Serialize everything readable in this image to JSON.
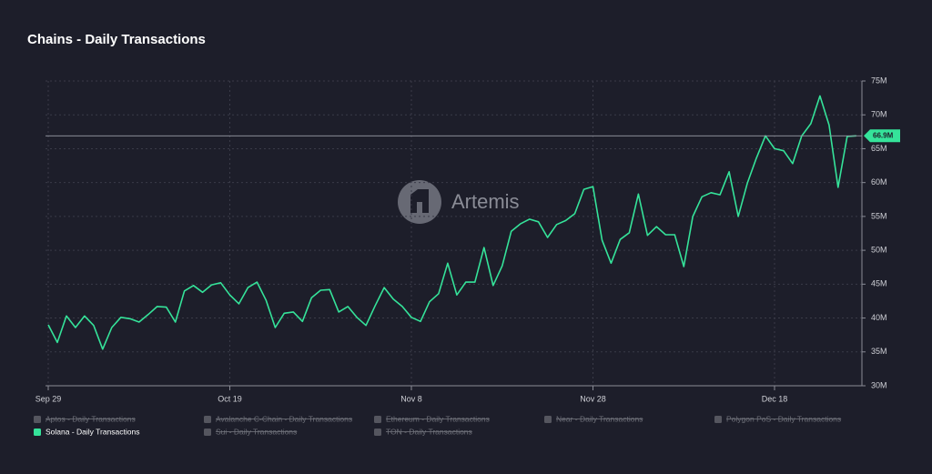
{
  "chart_data": {
    "type": "line",
    "title": "Chains - Daily Transactions",
    "watermark": "Artemis",
    "categories": [
      "Sep 29",
      "Sep 30",
      "Oct 1",
      "Oct 2",
      "Oct 3",
      "Oct 4",
      "Oct 5",
      "Oct 6",
      "Oct 7",
      "Oct 8",
      "Oct 9",
      "Oct 10",
      "Oct 11",
      "Oct 12",
      "Oct 13",
      "Oct 14",
      "Oct 15",
      "Oct 16",
      "Oct 17",
      "Oct 18",
      "Oct 19",
      "Oct 20",
      "Oct 21",
      "Oct 22",
      "Oct 23",
      "Oct 24",
      "Oct 25",
      "Oct 26",
      "Oct 27",
      "Oct 28",
      "Oct 29",
      "Oct 30",
      "Oct 31",
      "Nov 1",
      "Nov 2",
      "Nov 3",
      "Nov 4",
      "Nov 5",
      "Nov 6",
      "Nov 7",
      "Nov 8",
      "Nov 9",
      "Nov 10",
      "Nov 11",
      "Nov 12",
      "Nov 13",
      "Nov 14",
      "Nov 15",
      "Nov 16",
      "Nov 17",
      "Nov 18",
      "Nov 19",
      "Nov 20",
      "Nov 21",
      "Nov 22",
      "Nov 23",
      "Nov 24",
      "Nov 25",
      "Nov 26",
      "Nov 27",
      "Nov 28",
      "Nov 29",
      "Nov 30",
      "Dec 1",
      "Dec 2",
      "Dec 3",
      "Dec 4",
      "Dec 5",
      "Dec 6",
      "Dec 7",
      "Dec 8",
      "Dec 9",
      "Dec 10",
      "Dec 11",
      "Dec 12",
      "Dec 13",
      "Dec 14",
      "Dec 15",
      "Dec 16",
      "Dec 17",
      "Dec 18",
      "Dec 19",
      "Dec 20",
      "Dec 21",
      "Dec 22",
      "Dec 23",
      "Dec 24",
      "Dec 25",
      "Dec 26",
      "Dec 27"
    ],
    "series": [
      {
        "name": "Solana - Daily Transactions",
        "color": "#35e39a",
        "values": [
          39.0,
          36.4,
          40.3,
          38.6,
          40.3,
          38.9,
          35.4,
          38.6,
          40.1,
          39.9,
          39.4,
          40.5,
          41.7,
          41.6,
          39.4,
          44.0,
          44.8,
          43.8,
          44.9,
          45.2,
          43.4,
          42.1,
          44.5,
          45.3,
          42.6,
          38.6,
          40.7,
          40.9,
          39.5,
          43.0,
          44.1,
          44.2,
          40.9,
          41.7,
          40.1,
          38.9,
          41.8,
          44.5,
          42.8,
          41.7,
          40.1,
          39.5,
          42.4,
          43.6,
          48.1,
          43.4,
          45.3,
          45.3,
          50.4,
          44.8,
          47.7,
          52.8,
          53.9,
          54.6,
          54.2,
          51.9,
          53.8,
          54.4,
          55.4,
          59.0,
          59.4,
          51.5,
          48.1,
          51.6,
          52.6,
          58.3,
          52.2,
          53.5,
          52.3,
          52.3,
          47.6,
          55.0,
          57.9,
          58.5,
          58.2,
          61.6,
          55.0,
          59.9,
          63.6,
          66.9,
          65.0,
          64.7,
          62.8,
          66.9,
          68.7,
          72.8,
          68.5,
          59.3,
          66.8,
          66.9
        ],
        "value_labels": [
          null,
          null,
          null,
          null,
          null,
          null,
          null,
          null,
          null,
          null,
          null,
          null,
          null,
          null,
          null,
          null,
          null,
          null,
          null,
          null,
          null,
          null,
          null,
          null,
          null,
          null,
          null,
          null,
          null,
          null,
          null,
          null,
          null,
          null,
          null,
          null,
          null,
          null,
          null,
          null,
          null,
          null,
          null,
          null,
          null,
          null,
          null,
          null,
          null,
          null,
          null,
          null,
          null,
          null,
          null,
          null,
          null,
          null,
          null,
          null,
          null,
          null,
          null,
          null,
          null,
          null,
          null,
          null,
          null,
          null,
          null,
          null,
          null,
          null,
          null,
          null,
          null,
          null,
          null,
          null,
          null,
          null,
          null,
          null,
          null,
          null,
          null,
          null,
          null,
          "66.9M"
        ]
      }
    ],
    "legend": [
      {
        "name": "Aptos - Daily Transactions",
        "active": false
      },
      {
        "name": "Avalanche C-Chain - Daily Transactions",
        "active": false
      },
      {
        "name": "Ethereum - Daily Transactions",
        "active": false
      },
      {
        "name": "Near - Daily Transactions",
        "active": false
      },
      {
        "name": "Polygon PoS - Daily Transactions",
        "active": false
      },
      {
        "name": "Solana - Daily Transactions",
        "active": true
      },
      {
        "name": "Sui - Daily Transactions",
        "active": false
      },
      {
        "name": "TON - Daily Transactions",
        "active": false
      }
    ],
    "xticks": [
      "Sep 29",
      "Oct 19",
      "Nov 8",
      "Nov 28",
      "Dec 18"
    ],
    "ylim": [
      30,
      75
    ],
    "yticks": [
      {
        "value": 30,
        "label": "30M"
      },
      {
        "value": 35,
        "label": "35M"
      },
      {
        "value": 40,
        "label": "40M"
      },
      {
        "value": 45,
        "label": "45M"
      },
      {
        "value": 50,
        "label": "50M"
      },
      {
        "value": 55,
        "label": "55M"
      },
      {
        "value": 60,
        "label": "60M"
      },
      {
        "value": 65,
        "label": "65M"
      },
      {
        "value": 70,
        "label": "70M"
      },
      {
        "value": 75,
        "label": "75M"
      }
    ],
    "grid": true
  }
}
